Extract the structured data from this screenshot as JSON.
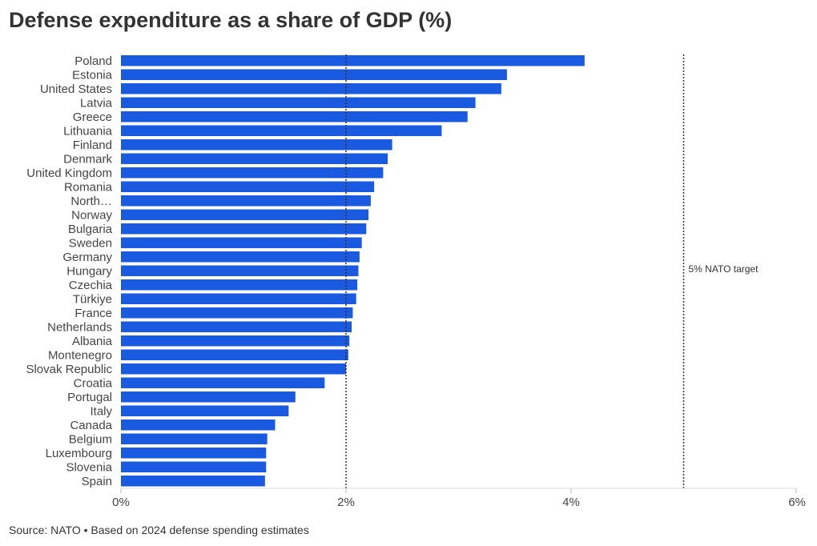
{
  "title": "Defense expenditure as a share of GDP (%)",
  "footer": "Source: NATO • Based on 2024 defense spending estimates",
  "colors": {
    "bar": "#1a5ae0",
    "reference_line": "#333333",
    "axis": "#dddddd",
    "text": "#444444"
  },
  "chart_data": {
    "type": "bar",
    "orientation": "horizontal",
    "categories": [
      "Poland",
      "Estonia",
      "United States",
      "Latvia",
      "Greece",
      "Lithuania",
      "Finland",
      "Denmark",
      "United Kingdom",
      "Romania",
      "North…",
      "Norway",
      "Bulgaria",
      "Sweden",
      "Germany",
      "Hungary",
      "Czechia",
      "Türkiye",
      "France",
      "Netherlands",
      "Albania",
      "Montenegro",
      "Slovak Republic",
      "Croatia",
      "Portugal",
      "Italy",
      "Canada",
      "Belgium",
      "Luxembourg",
      "Slovenia",
      "Spain"
    ],
    "values": [
      4.12,
      3.43,
      3.38,
      3.15,
      3.08,
      2.85,
      2.41,
      2.37,
      2.33,
      2.25,
      2.22,
      2.2,
      2.18,
      2.14,
      2.12,
      2.11,
      2.1,
      2.09,
      2.06,
      2.05,
      2.03,
      2.02,
      2.0,
      1.81,
      1.55,
      1.49,
      1.37,
      1.3,
      1.29,
      1.29,
      1.28
    ],
    "xlim": [
      0,
      6
    ],
    "xticks": [
      0,
      2,
      4,
      6
    ],
    "xtick_labels": [
      "0%",
      "2%",
      "4%",
      "6%"
    ],
    "reference_lines": [
      {
        "value": 2,
        "label": ""
      },
      {
        "value": 5,
        "label": "5% NATO target"
      }
    ],
    "grid": false,
    "legend": "none"
  }
}
